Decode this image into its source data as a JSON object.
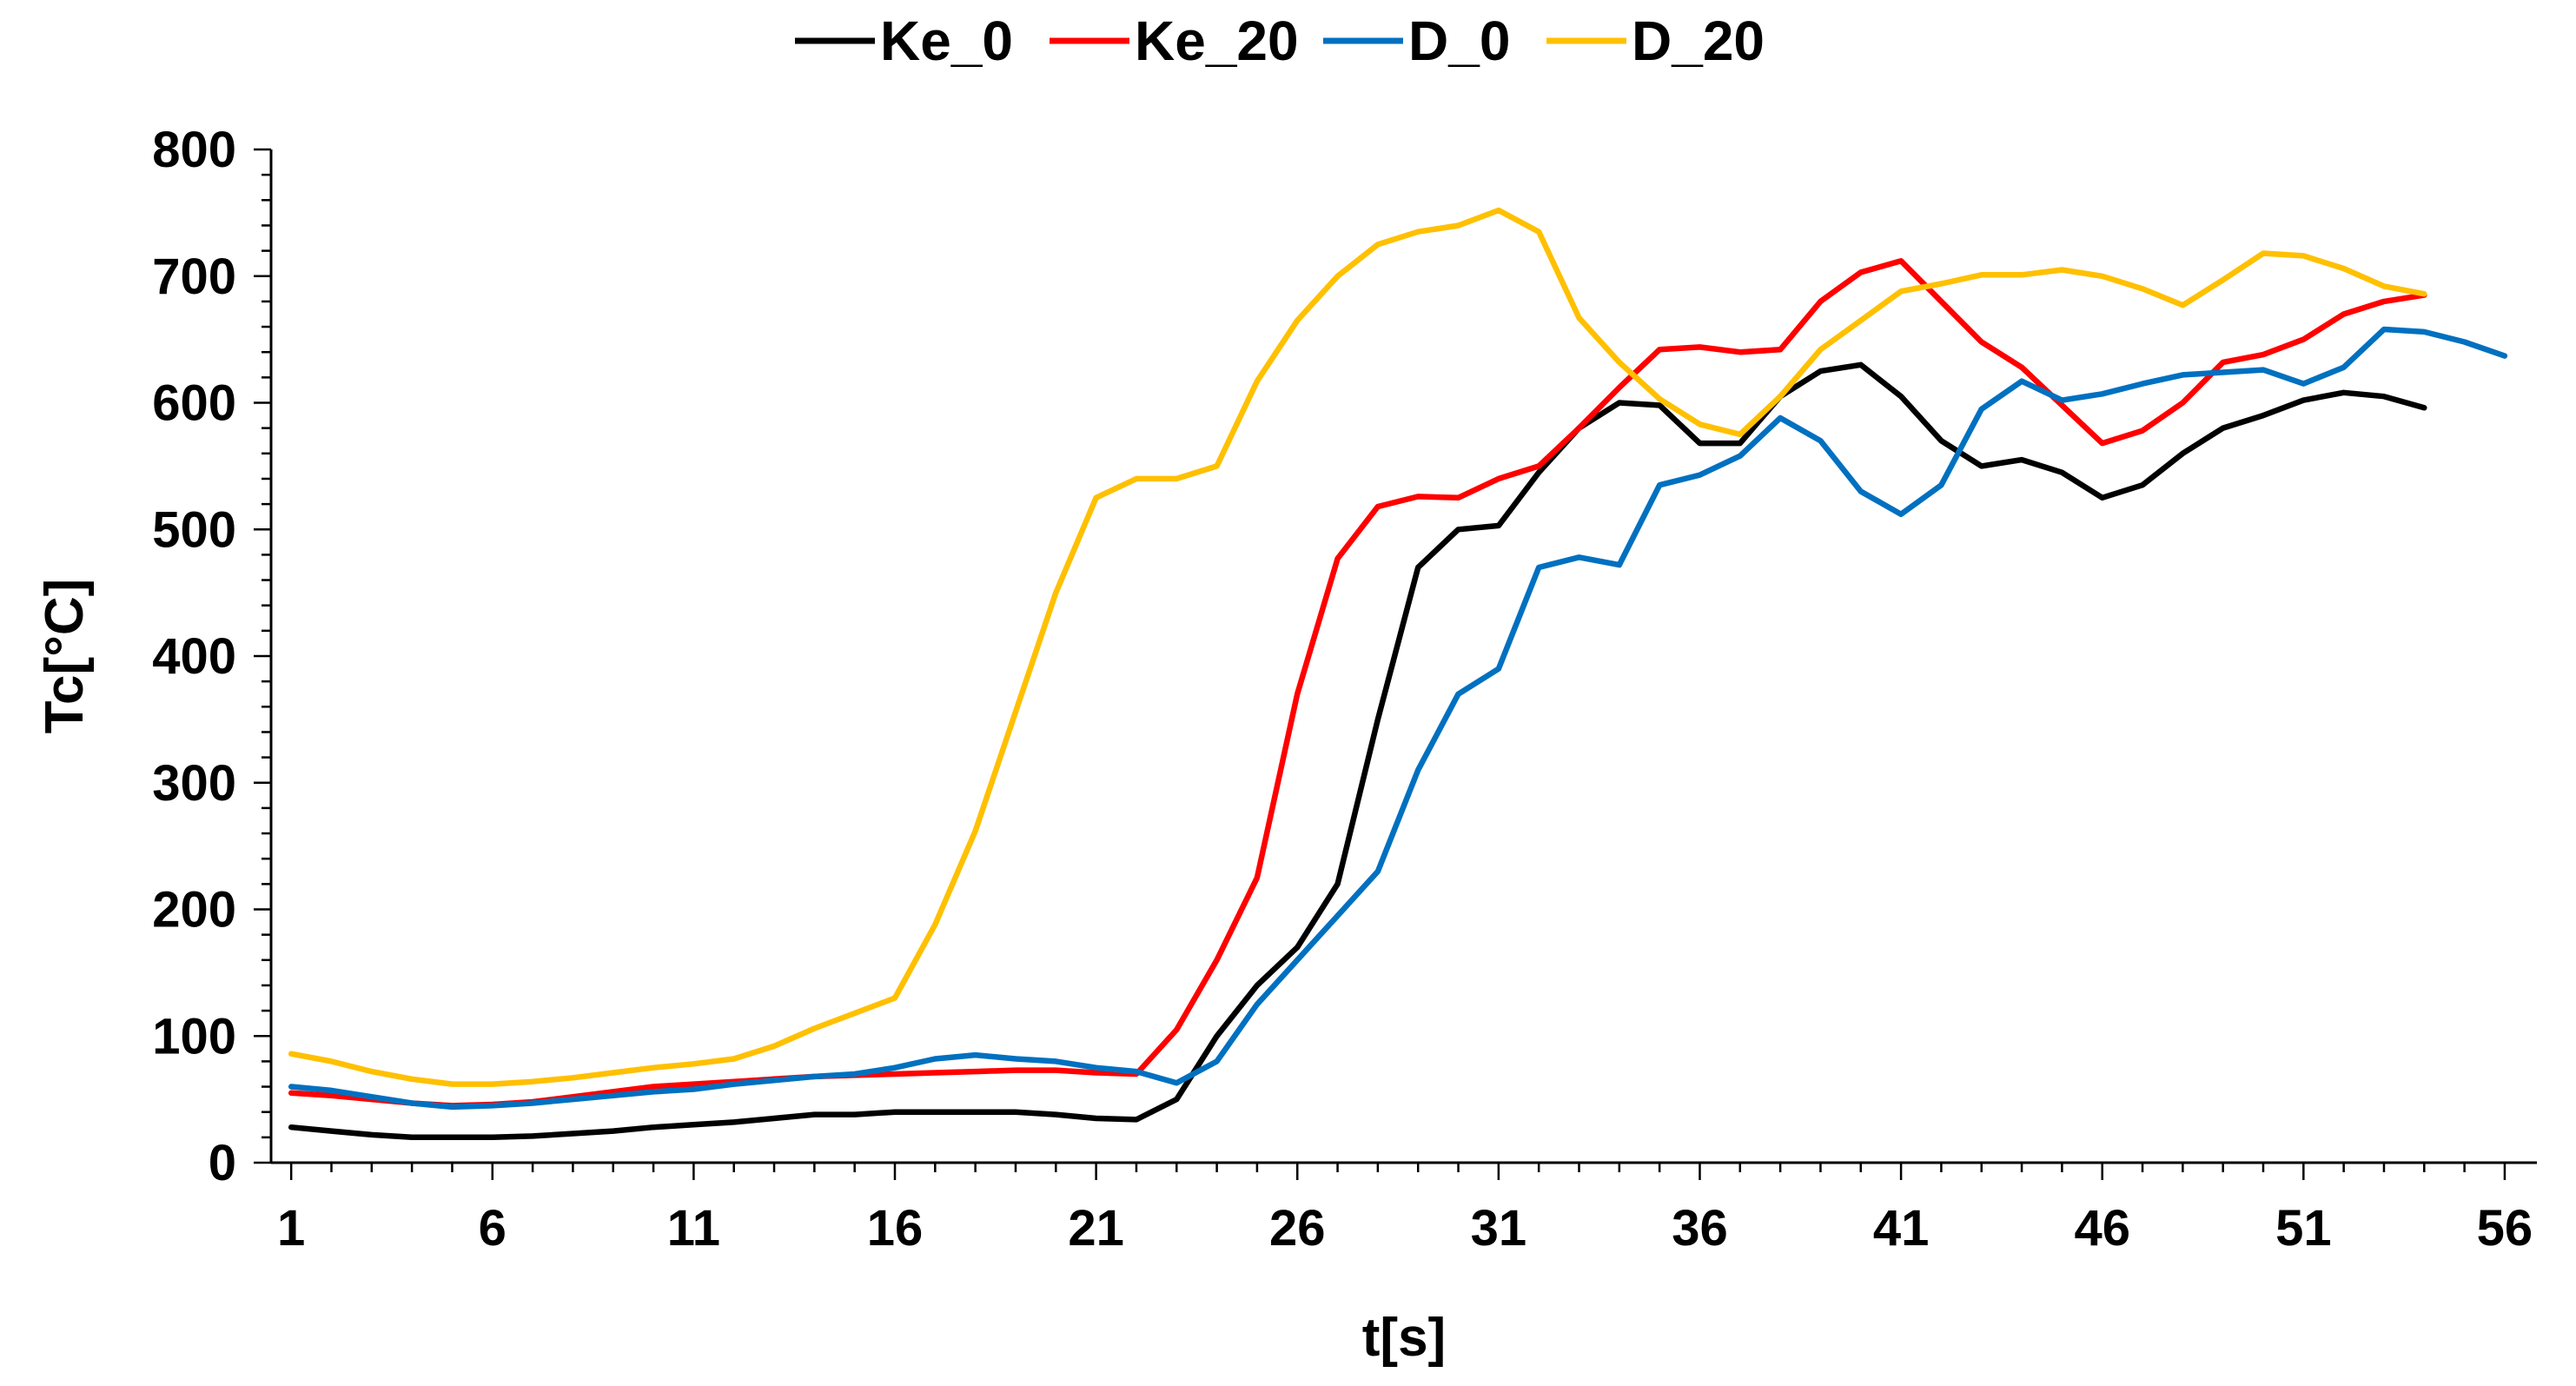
{
  "chart_data": {
    "type": "line",
    "title": "",
    "xlabel": "t[s]",
    "ylabel": "Tc[°C]",
    "xlim": [
      0.5,
      56.8
    ],
    "ylim": [
      0,
      800
    ],
    "xticks": [
      1,
      6,
      11,
      16,
      21,
      26,
      31,
      36,
      41,
      46,
      51,
      56
    ],
    "yticks": [
      0,
      100,
      200,
      300,
      400,
      500,
      600,
      700,
      800
    ],
    "legend_position": "top",
    "series": [
      {
        "name": "Ke_0",
        "color": "#000000",
        "points": [
          [
            1,
            28
          ],
          [
            2,
            25
          ],
          [
            3,
            22
          ],
          [
            4,
            20
          ],
          [
            5,
            20
          ],
          [
            6,
            20
          ],
          [
            7,
            21
          ],
          [
            8,
            23
          ],
          [
            9,
            25
          ],
          [
            10,
            28
          ],
          [
            11,
            30
          ],
          [
            12,
            32
          ],
          [
            13,
            35
          ],
          [
            14,
            38
          ],
          [
            15,
            38
          ],
          [
            16,
            40
          ],
          [
            17,
            40
          ],
          [
            18,
            40
          ],
          [
            19,
            40
          ],
          [
            20,
            38
          ],
          [
            21,
            35
          ],
          [
            22,
            34
          ],
          [
            23,
            50
          ],
          [
            24,
            100
          ],
          [
            25,
            140
          ],
          [
            26,
            170
          ],
          [
            27,
            220
          ],
          [
            28,
            350
          ],
          [
            29,
            470
          ],
          [
            30,
            500
          ],
          [
            31,
            503
          ],
          [
            32,
            545
          ],
          [
            33,
            580
          ],
          [
            34,
            600
          ],
          [
            35,
            598
          ],
          [
            36,
            568
          ],
          [
            37,
            568
          ],
          [
            38,
            605
          ],
          [
            39,
            625
          ],
          [
            40,
            630
          ],
          [
            41,
            605
          ],
          [
            42,
            570
          ],
          [
            43,
            550
          ],
          [
            44,
            555
          ],
          [
            45,
            545
          ],
          [
            46,
            525
          ],
          [
            47,
            535
          ],
          [
            48,
            560
          ],
          [
            49,
            580
          ],
          [
            50,
            590
          ],
          [
            51,
            602
          ],
          [
            52,
            608
          ],
          [
            53,
            605
          ],
          [
            54,
            596
          ]
        ]
      },
      {
        "name": "Ke_20",
        "color": "#ff0000",
        "points": [
          [
            1,
            55
          ],
          [
            2,
            53
          ],
          [
            3,
            50
          ],
          [
            4,
            47
          ],
          [
            5,
            45
          ],
          [
            6,
            46
          ],
          [
            7,
            48
          ],
          [
            8,
            52
          ],
          [
            9,
            56
          ],
          [
            10,
            60
          ],
          [
            11,
            62
          ],
          [
            12,
            64
          ],
          [
            13,
            66
          ],
          [
            14,
            68
          ],
          [
            15,
            69
          ],
          [
            16,
            70
          ],
          [
            17,
            71
          ],
          [
            18,
            72
          ],
          [
            19,
            73
          ],
          [
            20,
            73
          ],
          [
            21,
            71
          ],
          [
            22,
            70
          ],
          [
            23,
            105
          ],
          [
            24,
            160
          ],
          [
            25,
            225
          ],
          [
            26,
            370
          ],
          [
            27,
            477
          ],
          [
            28,
            518
          ],
          [
            29,
            526
          ],
          [
            30,
            525
          ],
          [
            31,
            540
          ],
          [
            32,
            550
          ],
          [
            33,
            580
          ],
          [
            34,
            612
          ],
          [
            35,
            642
          ],
          [
            36,
            644
          ],
          [
            37,
            640
          ],
          [
            38,
            642
          ],
          [
            39,
            680
          ],
          [
            40,
            703
          ],
          [
            41,
            712
          ],
          [
            42,
            680
          ],
          [
            43,
            648
          ],
          [
            44,
            628
          ],
          [
            45,
            598
          ],
          [
            46,
            568
          ],
          [
            47,
            578
          ],
          [
            48,
            600
          ],
          [
            49,
            632
          ],
          [
            50,
            638
          ],
          [
            51,
            650
          ],
          [
            52,
            670
          ],
          [
            53,
            680
          ],
          [
            54,
            685
          ]
        ]
      },
      {
        "name": "D_0",
        "color": "#0070c0",
        "points": [
          [
            1,
            60
          ],
          [
            2,
            57
          ],
          [
            3,
            52
          ],
          [
            4,
            47
          ],
          [
            5,
            44
          ],
          [
            6,
            45
          ],
          [
            7,
            47
          ],
          [
            8,
            50
          ],
          [
            9,
            53
          ],
          [
            10,
            56
          ],
          [
            11,
            58
          ],
          [
            12,
            62
          ],
          [
            13,
            65
          ],
          [
            14,
            68
          ],
          [
            15,
            70
          ],
          [
            16,
            75
          ],
          [
            17,
            82
          ],
          [
            18,
            85
          ],
          [
            19,
            82
          ],
          [
            20,
            80
          ],
          [
            21,
            75
          ],
          [
            22,
            72
          ],
          [
            23,
            63
          ],
          [
            24,
            80
          ],
          [
            25,
            125
          ],
          [
            26,
            160
          ],
          [
            27,
            195
          ],
          [
            28,
            230
          ],
          [
            29,
            310
          ],
          [
            30,
            370
          ],
          [
            31,
            390
          ],
          [
            32,
            470
          ],
          [
            33,
            478
          ],
          [
            34,
            472
          ],
          [
            35,
            535
          ],
          [
            36,
            543
          ],
          [
            37,
            558
          ],
          [
            38,
            588
          ],
          [
            39,
            570
          ],
          [
            40,
            530
          ],
          [
            41,
            512
          ],
          [
            42,
            535
          ],
          [
            43,
            595
          ],
          [
            44,
            617
          ],
          [
            45,
            602
          ],
          [
            46,
            607
          ],
          [
            47,
            615
          ],
          [
            48,
            622
          ],
          [
            49,
            624
          ],
          [
            50,
            626
          ],
          [
            51,
            615
          ],
          [
            52,
            628
          ],
          [
            53,
            658
          ],
          [
            54,
            656
          ],
          [
            55,
            648
          ],
          [
            56,
            637
          ]
        ]
      },
      {
        "name": "D_20",
        "color": "#ffc000",
        "points": [
          [
            1,
            86
          ],
          [
            2,
            80
          ],
          [
            3,
            72
          ],
          [
            4,
            66
          ],
          [
            5,
            62
          ],
          [
            6,
            62
          ],
          [
            7,
            64
          ],
          [
            8,
            67
          ],
          [
            9,
            71
          ],
          [
            10,
            75
          ],
          [
            11,
            78
          ],
          [
            12,
            82
          ],
          [
            13,
            92
          ],
          [
            14,
            106
          ],
          [
            15,
            118
          ],
          [
            16,
            130
          ],
          [
            17,
            188
          ],
          [
            18,
            262
          ],
          [
            19,
            356
          ],
          [
            20,
            450
          ],
          [
            21,
            525
          ],
          [
            22,
            540
          ],
          [
            23,
            540
          ],
          [
            24,
            550
          ],
          [
            25,
            617
          ],
          [
            26,
            665
          ],
          [
            27,
            700
          ],
          [
            28,
            725
          ],
          [
            29,
            735
          ],
          [
            30,
            740
          ],
          [
            31,
            752
          ],
          [
            32,
            735
          ],
          [
            33,
            667
          ],
          [
            34,
            632
          ],
          [
            35,
            603
          ],
          [
            36,
            583
          ],
          [
            37,
            575
          ],
          [
            38,
            605
          ],
          [
            39,
            642
          ],
          [
            40,
            665
          ],
          [
            41,
            688
          ],
          [
            42,
            694
          ],
          [
            43,
            701
          ],
          [
            44,
            701
          ],
          [
            45,
            705
          ],
          [
            46,
            700
          ],
          [
            47,
            690
          ],
          [
            48,
            677
          ],
          [
            49,
            697
          ],
          [
            50,
            718
          ],
          [
            51,
            716
          ],
          [
            52,
            706
          ],
          [
            53,
            692
          ],
          [
            54,
            686
          ]
        ]
      }
    ]
  }
}
